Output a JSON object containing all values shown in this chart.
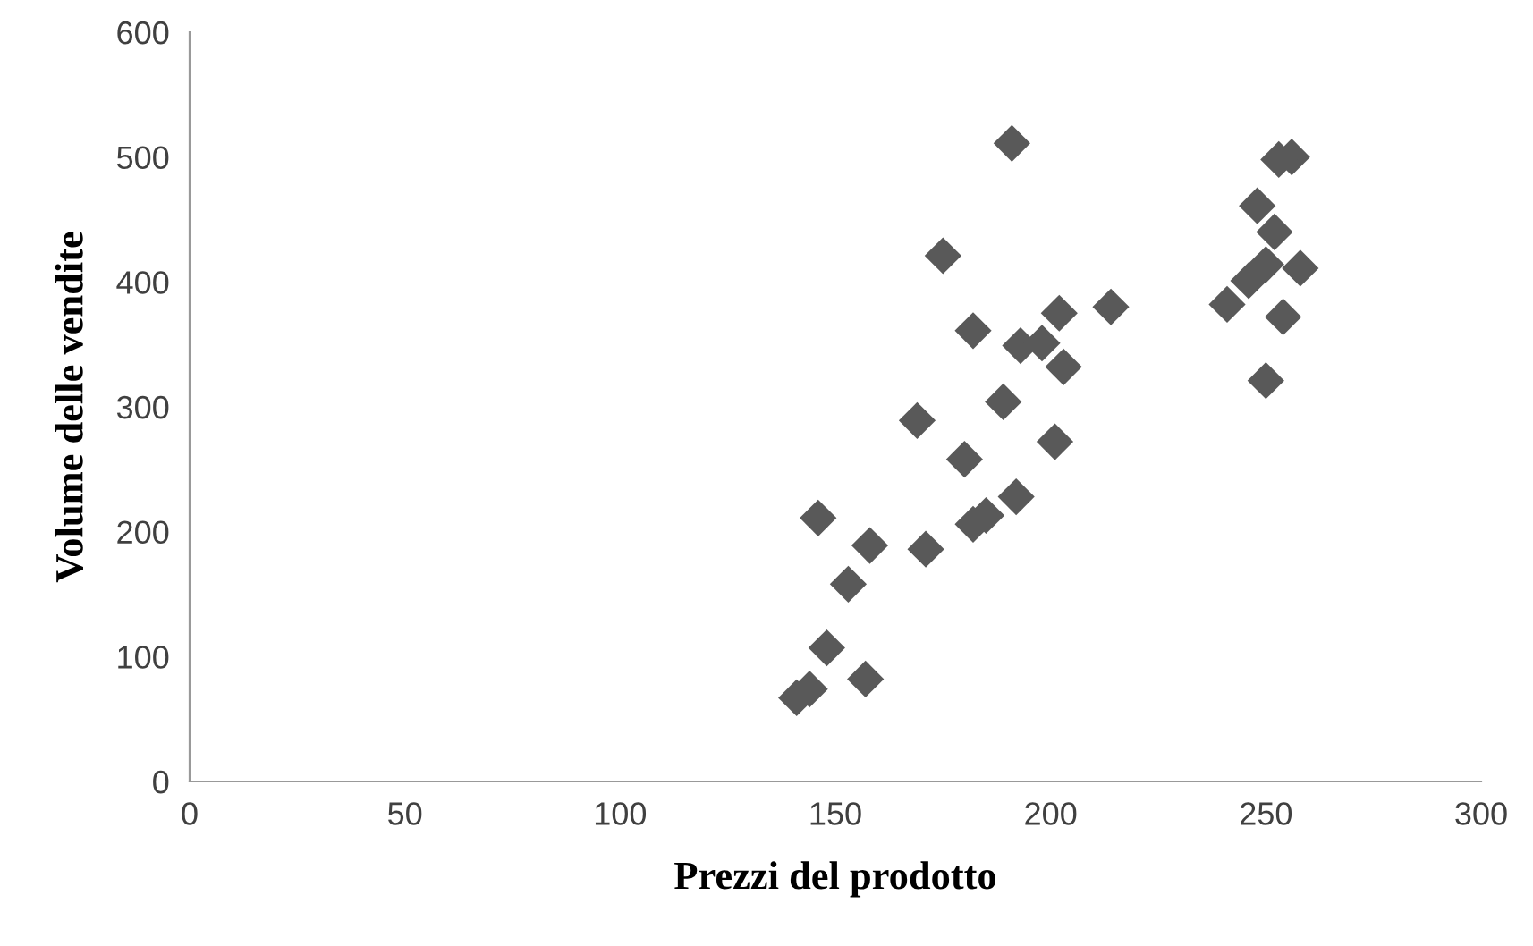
{
  "chart_data": {
    "type": "scatter",
    "xlabel": "Prezzi del prodotto",
    "ylabel": "Volume delle vendite",
    "marker": "diamond",
    "grid": false,
    "xlim": [
      0,
      300
    ],
    "ylim": [
      0,
      600
    ],
    "xticks": [
      0,
      50,
      100,
      150,
      200,
      250,
      300
    ],
    "yticks": [
      0,
      100,
      200,
      300,
      400,
      500,
      600
    ],
    "series": [
      {
        "color": "#595959",
        "x": [
          141,
          144,
          148,
          157,
          153,
          146,
          158,
          171,
          169,
          182,
          180,
          182,
          185,
          192,
          189,
          201,
          193,
          202,
          203,
          198,
          214,
          191,
          175,
          256,
          253,
          248,
          252,
          250,
          246,
          241,
          258,
          254,
          250
        ],
        "values": [
          67,
          74,
          107,
          82,
          158,
          211,
          189,
          186,
          289,
          361,
          258,
          206,
          213,
          228,
          304,
          272,
          349,
          375,
          332,
          351,
          380,
          511,
          421,
          500,
          498,
          461,
          440,
          414,
          401,
          382,
          411,
          372,
          321
        ]
      }
    ]
  }
}
